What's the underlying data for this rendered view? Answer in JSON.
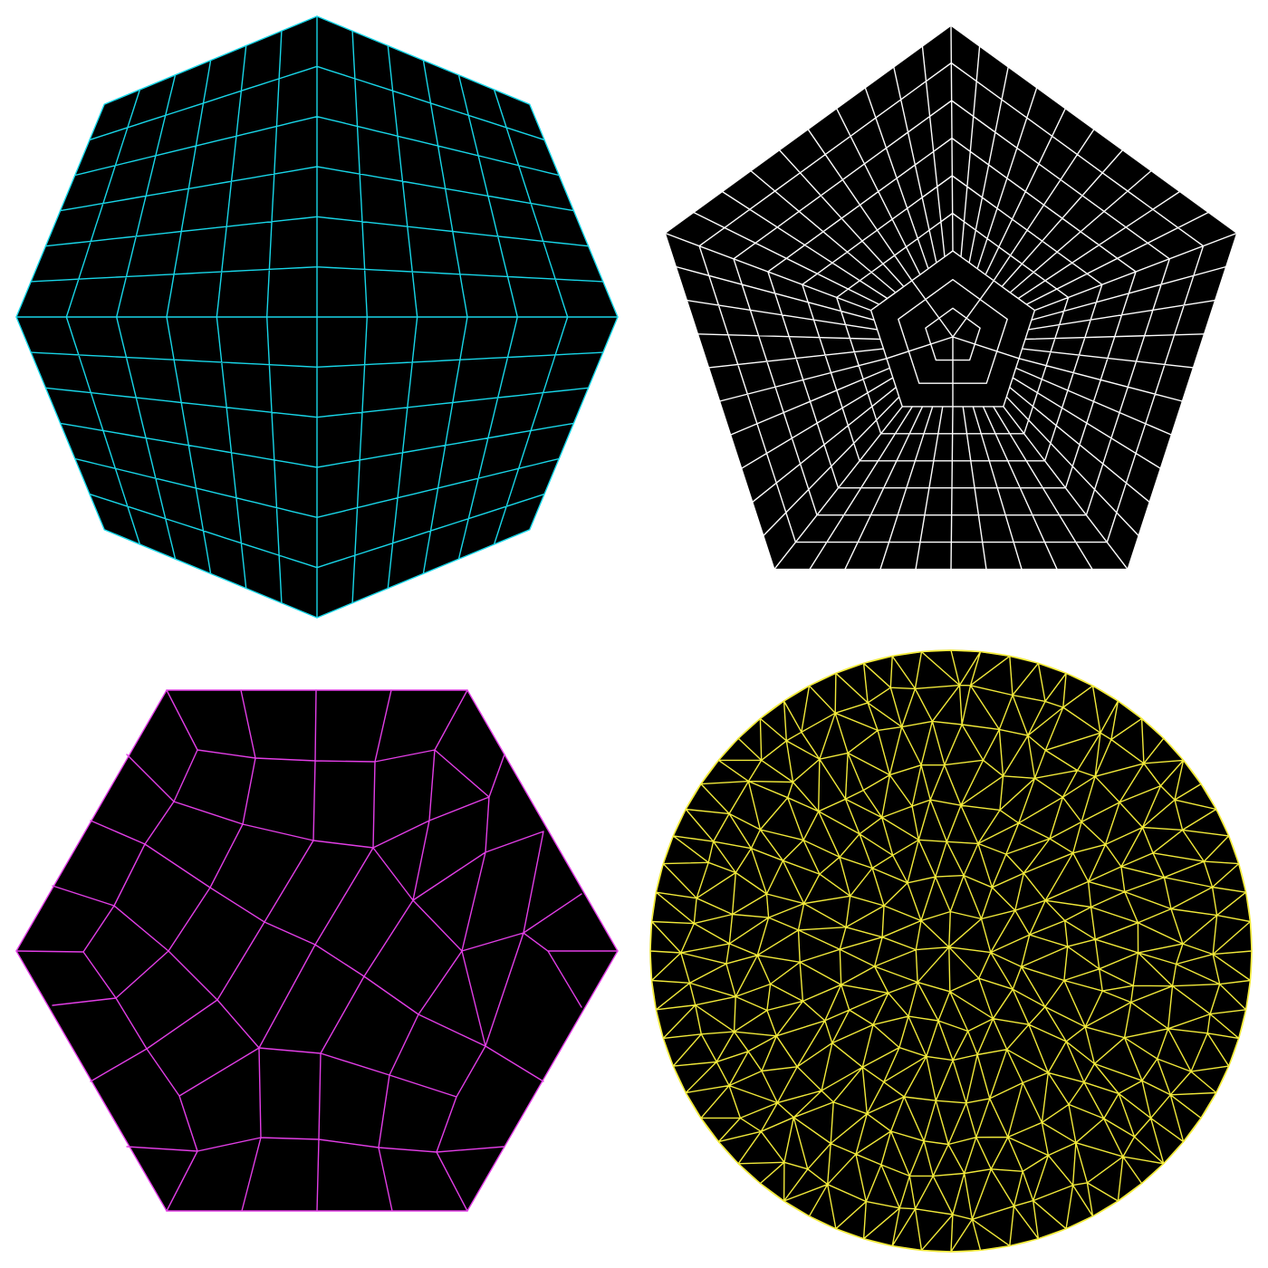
{
  "panels": [
    {
      "id": "octagon",
      "shape": "octagon",
      "element_type": "quadrilateral",
      "line_color": "#18d6e8",
      "fill": "#000000"
    },
    {
      "id": "pentagon",
      "shape": "pentagon",
      "element_type": "quadrilateral",
      "line_color": "#ffffff",
      "fill": "#000000"
    },
    {
      "id": "hexagon",
      "shape": "hexagon",
      "element_type": "quadrilateral",
      "line_color": "#e23ee6",
      "fill": "#000000"
    },
    {
      "id": "circle",
      "shape": "circle",
      "element_type": "triangle",
      "line_color": "#f2ea3a",
      "fill": "#000000"
    }
  ]
}
